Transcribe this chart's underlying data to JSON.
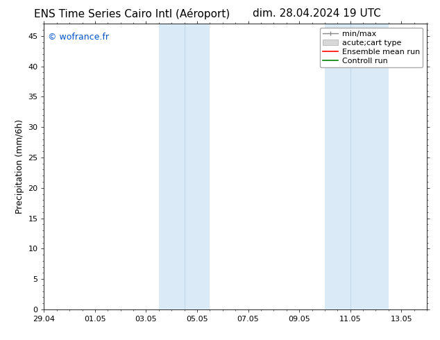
{
  "title_left": "ENS Time Series Cairo Intl (Aéroport)",
  "title_right": "dim. 28.04.2024 19 UTC",
  "ylabel": "Precipitation (mm/6h)",
  "watermark": "© wofrance.fr",
  "watermark_color": "#0055cc",
  "background_color": "#ffffff",
  "plot_bg_color": "#ffffff",
  "xmin": 0,
  "xmax": 15,
  "ymin": 0,
  "ymax": 47,
  "yticks": [
    0,
    5,
    10,
    15,
    20,
    25,
    30,
    35,
    40,
    45
  ],
  "xtick_labels": [
    "29.04",
    "01.05",
    "03.05",
    "05.05",
    "07.05",
    "09.05",
    "11.05",
    "13.05"
  ],
  "xtick_positions": [
    0,
    2,
    4,
    6,
    8,
    10,
    12,
    14
  ],
  "shaded_bands": [
    {
      "xstart": 4.5,
      "xend": 5.5,
      "color": "#daeaf7"
    },
    {
      "xstart": 5.5,
      "xend": 6.5,
      "color": "#daeaf7"
    },
    {
      "xstart": 11.0,
      "xend": 12.0,
      "color": "#daeaf7"
    },
    {
      "xstart": 12.0,
      "xend": 13.5,
      "color": "#daeaf7"
    }
  ],
  "shaded_bands_merged": [
    {
      "xstart": 4.5,
      "xend": 6.5,
      "color": "#daeaf7"
    },
    {
      "xstart": 11.0,
      "xend": 13.5,
      "color": "#daeaf7"
    }
  ],
  "shaded_lines": [
    5.5,
    12.0
  ],
  "shaded_line_color": "#c0d8ee",
  "title_fontsize": 11,
  "axis_label_fontsize": 9,
  "tick_fontsize": 8,
  "watermark_fontsize": 9,
  "legend_fontsize": 8
}
